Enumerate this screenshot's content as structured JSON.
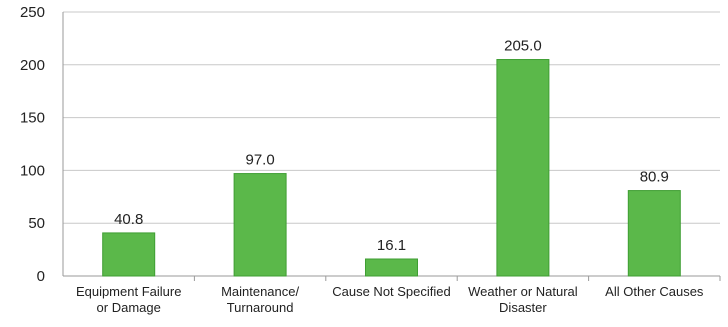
{
  "chart_data": {
    "type": "bar",
    "categories": [
      [
        "Equipment Failure",
        "or Damage"
      ],
      [
        "Maintenance/",
        "Turnaround"
      ],
      [
        "Cause Not Specified"
      ],
      [
        "Weather or Natural",
        "Disaster"
      ],
      [
        "All Other Causes"
      ]
    ],
    "values": [
      40.8,
      97.0,
      16.1,
      205.0,
      80.9
    ],
    "data_labels": [
      "40.8",
      "97.0",
      "16.1",
      "205.0",
      "80.9"
    ],
    "ylim": [
      0,
      250
    ],
    "yticks": [
      0,
      50,
      100,
      150,
      200,
      250
    ],
    "grid": true,
    "legend": "none",
    "colors": {
      "bar": "#5bb84a",
      "bar_stroke": "#3f9e33",
      "grid": "#c8c8c8",
      "axis": "#9a9a9a"
    }
  }
}
